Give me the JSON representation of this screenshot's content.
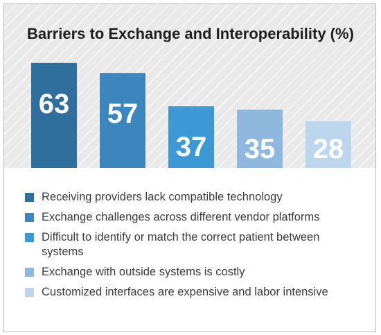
{
  "chart_data": {
    "type": "bar",
    "title": "Barriers to Exchange and Interoperability (%)",
    "xlabel": "",
    "ylabel": "",
    "ylim": [
      0,
      70
    ],
    "grid": false,
    "legend_placement": "bottom",
    "categories": [
      "Receiving providers lack compatible technology",
      "Exchange challenges across different vendor platforms",
      "Difficult to identify or match the correct patient between systems",
      "Exchange with outside systems is costly",
      "Customized interfaces are expensive and labor intensive"
    ],
    "values": [
      63,
      57,
      37,
      35,
      28
    ],
    "colors": [
      "#2e6f9d",
      "#3c86c0",
      "#3d99d6",
      "#8fb8df",
      "#bcd6ee"
    ]
  }
}
